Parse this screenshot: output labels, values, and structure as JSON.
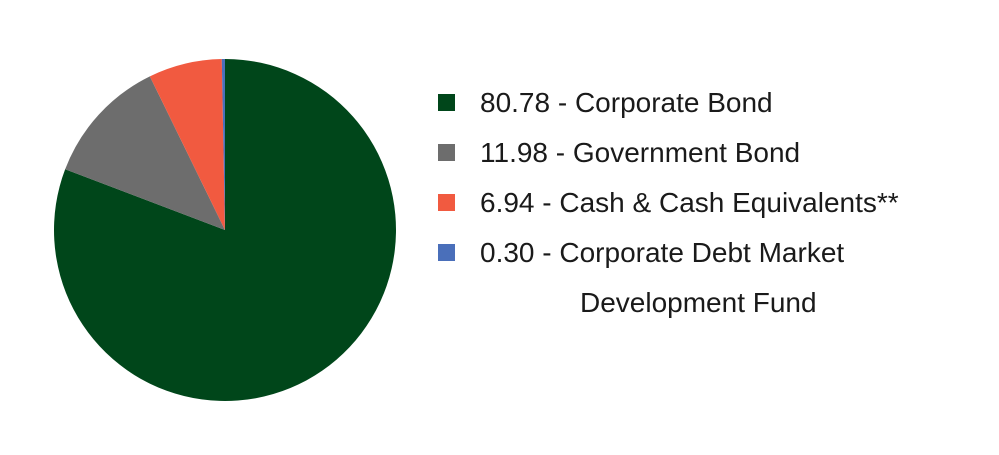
{
  "chart_data": {
    "type": "pie",
    "categories": [
      "80.78 - Corporate Bond",
      "11.98 - Government Bond",
      "6.94 - Cash & Cash Equivalents**",
      "0.30 - Corporate Debt Market Development Fund"
    ],
    "values": [
      80.78,
      11.98,
      6.94,
      0.3
    ],
    "colors": [
      "#00461a",
      "#6d6d6d",
      "#f15a40",
      "#4a6fba"
    ],
    "legend": "right"
  }
}
